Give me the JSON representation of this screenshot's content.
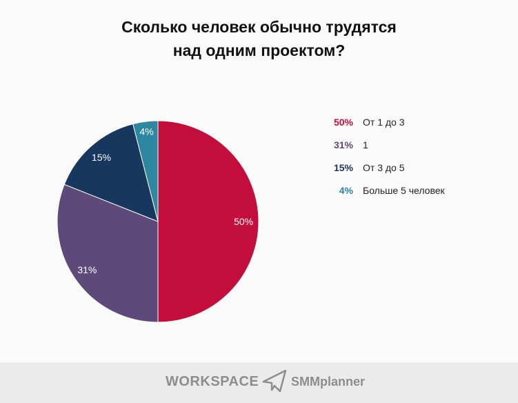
{
  "chart_data": {
    "type": "pie",
    "title": "Сколько человек обычно трудятся над одним проектом?",
    "title_lines": [
      "Сколько человек обычно трудятся",
      "над одним проектом?"
    ],
    "slices": [
      {
        "label": "От 1 до 3",
        "value": 50,
        "display": "50%",
        "color": "#c30d3a"
      },
      {
        "label": "1",
        "value": 31,
        "display": "31%",
        "color": "#5e4a7a"
      },
      {
        "label": "От 3 до 5",
        "value": 15,
        "display": "15%",
        "color": "#17375e"
      },
      {
        "label": "Больше 5 человек",
        "value": 4,
        "display": "4%",
        "color": "#2e87a0"
      }
    ],
    "legend_placement": "right"
  },
  "footer": {
    "logos": [
      "WORKSPACE",
      "SMMplanner"
    ]
  }
}
